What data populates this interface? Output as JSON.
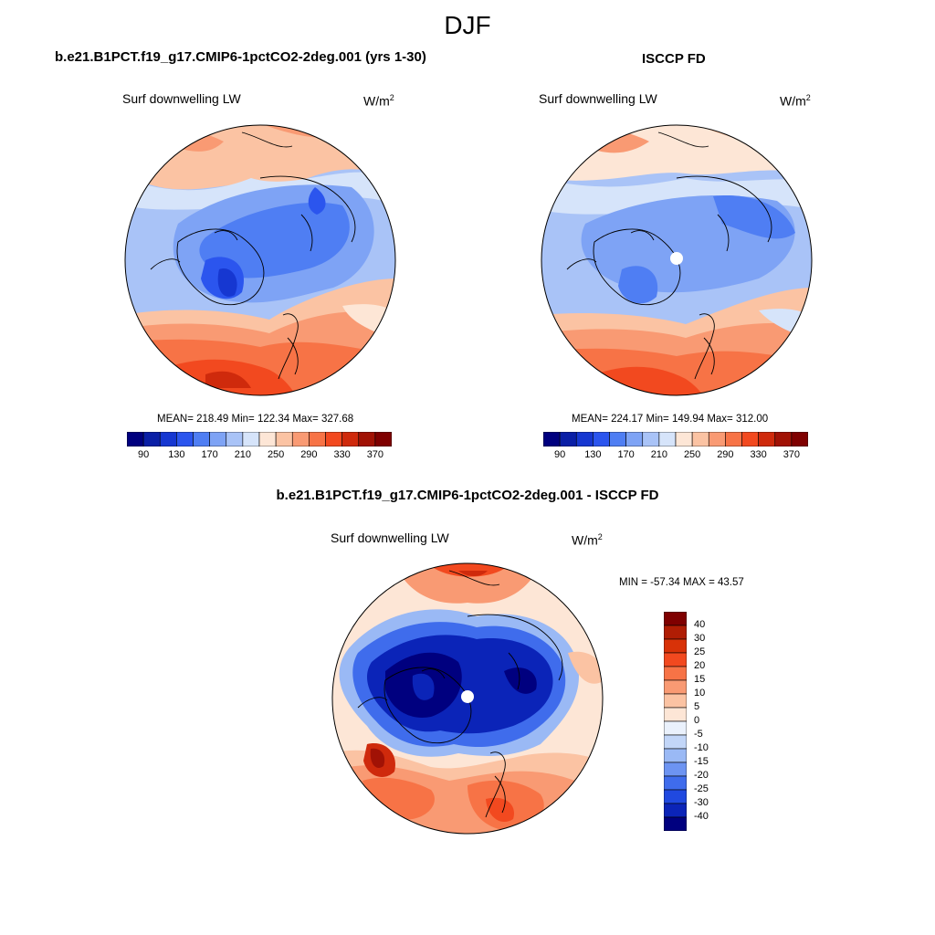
{
  "season": "DJF",
  "panels": [
    {
      "title": "b.e21.B1PCT.f19_g17.CMIP6-1pctCO2-2deg.001 (yrs 1-30)",
      "variable": "Surf downwelling LW",
      "units": "W/m",
      "units_sup": "2",
      "stats": "MEAN= 218.49  Min= 122.34  Max= 327.68",
      "mean": 218.49,
      "min": 122.34,
      "max": 327.68
    },
    {
      "title": "ISCCP FD",
      "variable": "Surf downwelling LW",
      "units": "W/m",
      "units_sup": "2",
      "stats": "MEAN= 224.17  Min= 149.94  Max= 312.00",
      "mean": 224.17,
      "min": 149.94,
      "max": 312.0
    },
    {
      "title": "b.e21.B1PCT.f19_g17.CMIP6-1pctCO2-2deg.001 - ISCCP FD",
      "variable": "Surf downwelling LW",
      "units": "W/m",
      "units_sup": "2",
      "stats": "MIN = -57.34 MAX =  43.57",
      "min": -57.34,
      "max": 43.57
    }
  ],
  "colorbar_abs": {
    "labels": [
      "90",
      "130",
      "170",
      "210",
      "250",
      "290",
      "330",
      "370"
    ],
    "colors": [
      "#00007f",
      "#0a1fa6",
      "#1637d1",
      "#2b55ee",
      "#4f7ef3",
      "#7ea3f5",
      "#a9c3f7",
      "#d6e4fa",
      "#fde6d6",
      "#fbc3a3",
      "#f99a73",
      "#f77346",
      "#f2491f",
      "#cf2a0c",
      "#a11205",
      "#7f0000"
    ]
  },
  "colorbar_diff": {
    "labels": [
      "40",
      "30",
      "25",
      "20",
      "15",
      "10",
      "5",
      "0",
      "-5",
      "-10",
      "-15",
      "-20",
      "-25",
      "-30",
      "-40"
    ],
    "colors": [
      "#7f0000",
      "#b01d04",
      "#d83208",
      "#f2491f",
      "#f77346",
      "#f99a73",
      "#fbc3a3",
      "#fde6d6",
      "#eaf1fc",
      "#c2d6f8",
      "#9ab9f5",
      "#6d94f2",
      "#3f6cec",
      "#2049e0",
      "#0b24b8",
      "#00007f"
    ]
  }
}
